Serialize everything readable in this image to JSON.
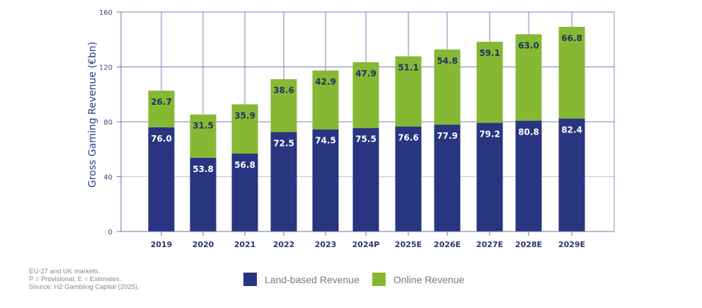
{
  "chart_data": {
    "type": "bar",
    "stacked": true,
    "title": "",
    "xlabel": "",
    "ylabel": "Gross Gaming Revenue (€bn)",
    "ylim": [
      0,
      160
    ],
    "yticks": [
      0,
      40,
      80,
      120,
      160
    ],
    "grid": true,
    "legend_position": "bottom-center",
    "categories": [
      "2019",
      "2020",
      "2021",
      "2022",
      "2023",
      "2024P",
      "2025E",
      "2026E",
      "2027E",
      "2028E",
      "2029E"
    ],
    "series": [
      {
        "name": "Land-based Revenue",
        "color": "#293580",
        "values": [
          76.0,
          53.8,
          56.8,
          72.5,
          74.5,
          75.5,
          76.6,
          77.9,
          79.2,
          80.8,
          82.4
        ],
        "labels": [
          "76.0",
          "53.8",
          "56.8",
          "72.5",
          "74.5",
          "75.5",
          "76.6",
          "77.9",
          "79.2",
          "80.8",
          "82.4"
        ]
      },
      {
        "name": "Online Revenue",
        "color": "#86b834",
        "values": [
          26.7,
          31.5,
          35.9,
          38.6,
          42.9,
          47.9,
          51.1,
          54.8,
          59.1,
          63.0,
          66.8
        ],
        "labels": [
          "26.7",
          "31.5",
          "35.9",
          "38.6",
          "42.9",
          "47.9",
          "51.1",
          "54.8",
          "59.1",
          "63.0",
          "66.8"
        ]
      }
    ]
  },
  "notes": [
    "EU-27 and UK markets.",
    "P = Provisional, E = Estimates.",
    "Source: H2 Gambling Capital (2025)."
  ],
  "legend": [
    {
      "label": "Land-based Revenue",
      "color": "#293580"
    },
    {
      "label": "Online Revenue",
      "color": "#86b834"
    }
  ]
}
